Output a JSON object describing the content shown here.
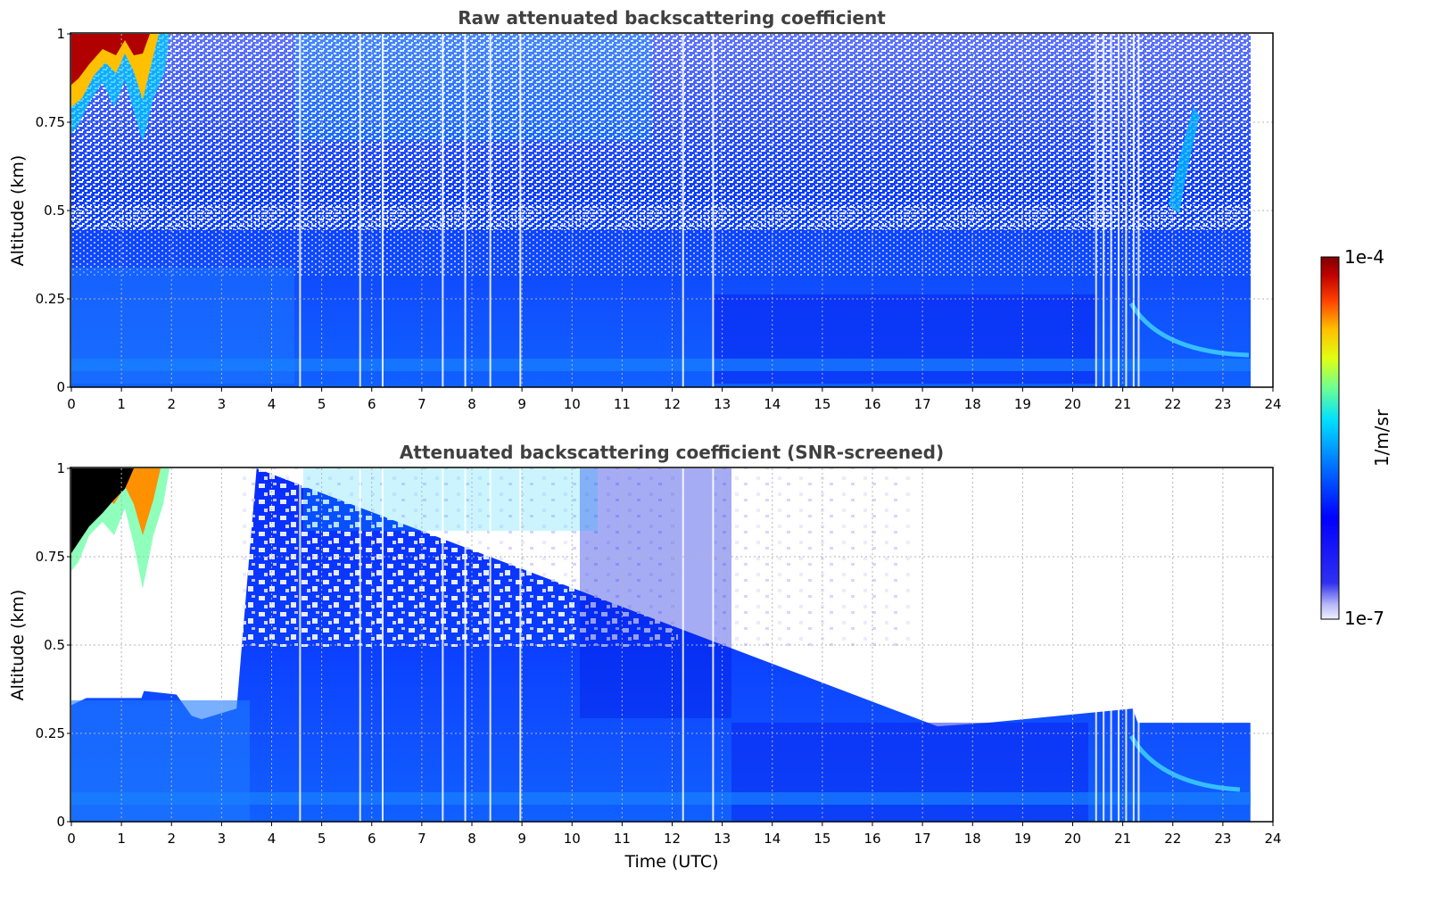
{
  "chart_data": [
    {
      "type": "heatmap",
      "title": "Raw attenuated backscattering coefficient",
      "xlabel": "",
      "ylabel": "Altitude (km)",
      "xlim": [
        0,
        24
      ],
      "ylim": [
        0,
        1
      ],
      "x_ticks": [
        "0",
        "1",
        "2",
        "3",
        "4",
        "5",
        "6",
        "7",
        "8",
        "9",
        "10",
        "11",
        "12",
        "13",
        "14",
        "15",
        "16",
        "17",
        "18",
        "19",
        "20",
        "21",
        "22",
        "23",
        "24"
      ],
      "y_ticks": [
        "0",
        "0.25",
        "0.5",
        "0.75",
        "1"
      ],
      "grid": true,
      "data_end_time": 23.55,
      "features": {
        "high_signal_cloud": {
          "time_range": [
            0,
            1.9
          ],
          "altitude_range": [
            0.62,
            1.0
          ],
          "level": "1e-4"
        },
        "weak_plume": {
          "time_range": [
            21.6,
            23.2
          ],
          "altitude_range": [
            0.05,
            0.85
          ]
        },
        "surface_layer": {
          "altitude_range": [
            0,
            0.08
          ]
        },
        "noise_above_km": 0.5
      }
    },
    {
      "type": "heatmap",
      "title": "Attenuated backscattering coefficient (SNR-screened)",
      "xlabel": "Time (UTC)",
      "ylabel": "Altitude (km)",
      "xlim": [
        0,
        24
      ],
      "ylim": [
        0,
        1
      ],
      "x_ticks": [
        "0",
        "1",
        "2",
        "3",
        "4",
        "5",
        "6",
        "7",
        "8",
        "9",
        "10",
        "11",
        "12",
        "13",
        "14",
        "15",
        "16",
        "17",
        "18",
        "19",
        "20",
        "21",
        "22",
        "23",
        "24"
      ],
      "y_ticks": [
        "0",
        "0.25",
        "0.5",
        "0.75",
        "1"
      ],
      "grid": true,
      "data_end_time": 23.55,
      "screened_top_profile": [
        {
          "t": 0.0,
          "h": 0.33
        },
        {
          "t": 0.3,
          "h": 0.35
        },
        {
          "t": 1.4,
          "h": 0.35
        },
        {
          "t": 1.45,
          "h": 0.37
        },
        {
          "t": 2.1,
          "h": 0.36
        },
        {
          "t": 2.4,
          "h": 0.3
        },
        {
          "t": 2.6,
          "h": 0.29
        },
        {
          "t": 3.3,
          "h": 0.32
        },
        {
          "t": 3.7,
          "h": 1.0
        },
        {
          "t": 17.3,
          "h": 0.27
        },
        {
          "t": 18.3,
          "h": 0.28
        },
        {
          "t": 21.2,
          "h": 0.32
        },
        {
          "t": 21.3,
          "h": 0.28
        },
        {
          "t": 23.55,
          "h": 0.28
        }
      ],
      "features": {
        "high_signal_cloud": {
          "time_range": [
            0,
            1.9
          ],
          "altitude_range": [
            0.65,
            1.0
          ],
          "level": "1e-4"
        },
        "weak_plume": {
          "time_range": [
            21.2,
            22.8
          ],
          "altitude_range": [
            0.05,
            0.25
          ]
        }
      }
    }
  ],
  "colorbar": {
    "label": "1/m/sr",
    "max_label": "1e-4",
    "min_label": "1e-7",
    "scale": "log",
    "colormap": "jet"
  }
}
